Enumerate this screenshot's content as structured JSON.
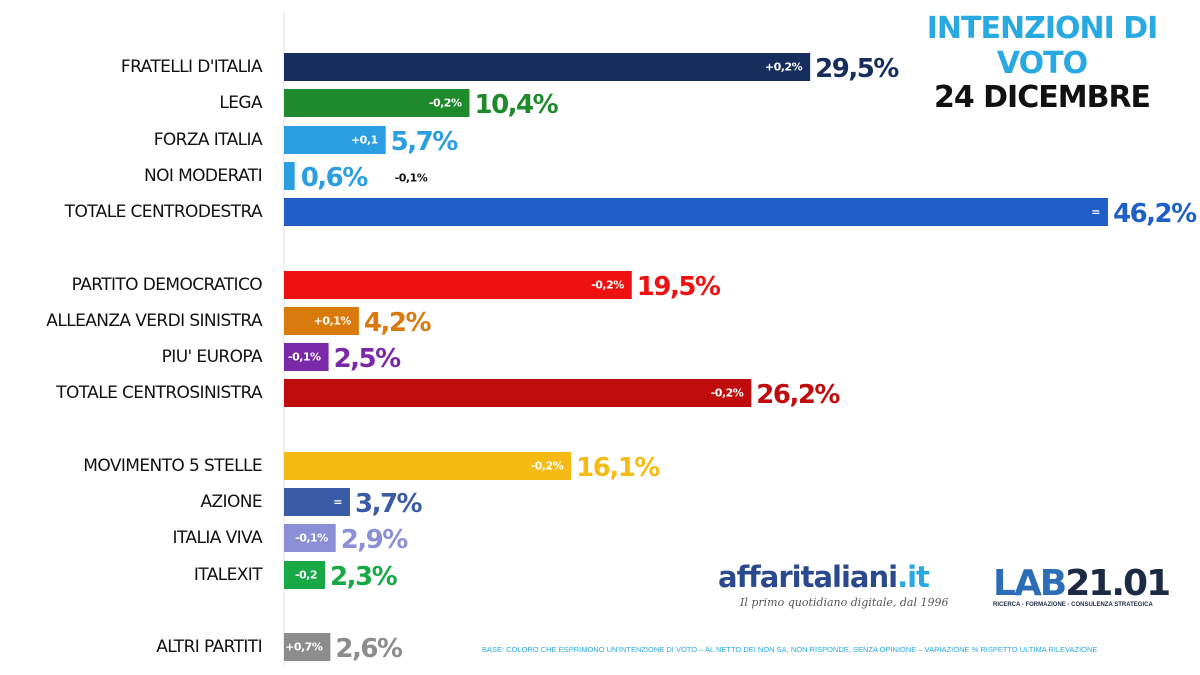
{
  "title": {
    "line1": "INTENZIONI DI",
    "line2": "VOTO",
    "date": "24 DICEMBRE"
  },
  "brand": {
    "name_main": "affaritaliani",
    "name_suffix": ".it",
    "tagline": "Il primo quotidiano digitale, dal 1996",
    "lab_part1": "LAB",
    "lab_part2": "21.01",
    "lab_sub": "RICERCA - FORMAZIONE - CONSULENZA STRATEGICA"
  },
  "footnote": "BASE: COLORO CHE ESPRIMONO UN'INTENZIONE DI VOTO – AL NETTO DEI NON SA, NON RISPONDE, SENZA OPINIONE – VARIAZIONE % RISPETTO ULTIMA RILEVAZIONE",
  "chart_data": {
    "type": "bar",
    "orientation": "horizontal",
    "xlim": [
      0,
      46.2
    ],
    "grid": false,
    "items": [
      {
        "label": "FRATELLI D'ITALIA",
        "value": 29.5,
        "value_label": "29,5%",
        "change": "+0,2%",
        "color": "#162d5e"
      },
      {
        "label": "LEGA",
        "value": 10.4,
        "value_label": "10,4%",
        "change": "-0,2%",
        "color": "#1f8a2c"
      },
      {
        "label": "FORZA ITALIA",
        "value": 5.7,
        "value_label": "5,7%",
        "change": "+0,1",
        "color": "#2a9ee0"
      },
      {
        "label": "NOI MODERATI",
        "value": 0.6,
        "value_label": "0,6%",
        "change": "-0,1%",
        "color": "#2a9ee0"
      },
      {
        "label": "TOTALE CENTRODESTRA",
        "value": 46.2,
        "value_label": "46,2%",
        "change": "=",
        "color": "#1e5fc8"
      },
      {
        "label": "PARTITO DEMOCRATICO",
        "value": 19.5,
        "value_label": "19,5%",
        "change": "-0,2%",
        "color": "#ee1111"
      },
      {
        "label": "ALLEANZA VERDI SINISTRA",
        "value": 4.2,
        "value_label": "4,2%",
        "change": "+0,1%",
        "color": "#d97a0d"
      },
      {
        "label": "PIU' EUROPA",
        "value": 2.5,
        "value_label": "2,5%",
        "change": "-0,1%",
        "color": "#7a2aa6"
      },
      {
        "label": "TOTALE CENTROSINISTRA",
        "value": 26.2,
        "value_label": "26,2%",
        "change": "-0,2%",
        "color": "#c00c0c"
      },
      {
        "label": "MOVIMENTO 5 STELLE",
        "value": 16.1,
        "value_label": "16,1%",
        "change": "-0,2%",
        "color": "#f5bb14"
      },
      {
        "label": "AZIONE",
        "value": 3.7,
        "value_label": "3,7%",
        "change": "=",
        "color": "#3a5ba6"
      },
      {
        "label": "ITALIA VIVA",
        "value": 2.9,
        "value_label": "2,9%",
        "change": "-0,1%",
        "color": "#8b8fd6"
      },
      {
        "label": "ITALEXIT",
        "value": 2.3,
        "value_label": "2,3%",
        "change": "-0,2",
        "color": "#18a845"
      },
      {
        "label": "ALTRI PARTITI",
        "value": 2.6,
        "value_label": "2,6%",
        "change": "+0,7%",
        "color": "#8c8c8c"
      }
    ]
  }
}
